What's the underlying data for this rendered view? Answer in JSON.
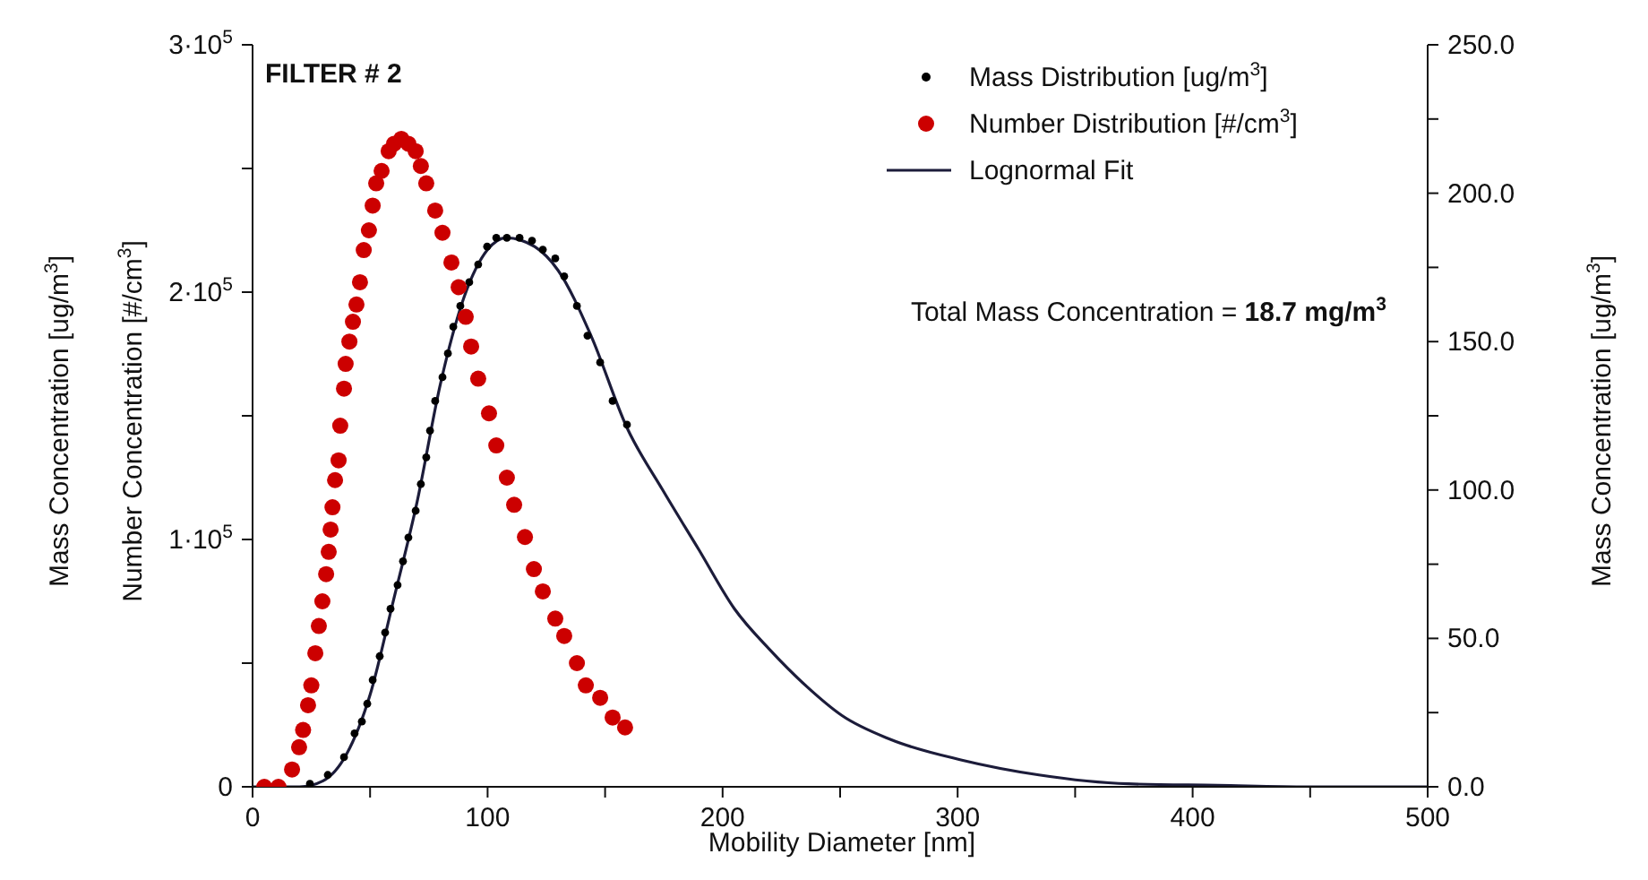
{
  "chart_data": {
    "type": "scatter",
    "xlabel": "Mobility Diameter [nm]",
    "ylabel": "Number Concentration [#/cm$^{3}$]",
    "y2label": "Mass Concentration [ug/m$^{3}$]",
    "annotations": [
      "FILTER # 2",
      "Total Mass Concentration = 18.7 mg/m$^{3}$",
      "Mass Concentration [ug/m$^{3}$]"
    ],
    "xlim": [
      0,
      500
    ],
    "xticks": [
      0,
      {
        "value": 50,
        "label": null
      },
      100,
      {
        "value": 150,
        "label": null
      },
      200,
      {
        "value": 250,
        "label": null
      },
      300,
      {
        "value": 350,
        "label": null
      },
      400,
      {
        "value": 450,
        "label": null
      },
      500
    ],
    "ylim": [
      0,
      300000
    ],
    "yticks": [
      0,
      {
        "value": 50000,
        "label": null
      },
      {
        "value": 100000,
        "label": "1·10$^{5}$"
      },
      {
        "value": 150000,
        "label": null
      },
      {
        "value": 200000,
        "label": "2·10$^{5}$"
      },
      {
        "value": 250000,
        "label": null
      },
      {
        "value": 300000,
        "label": "3·10$^{5}$"
      }
    ],
    "y2lim": [
      0,
      250
    ],
    "y2ticks": [
      {
        "value": 0,
        "label": "0.0"
      },
      {
        "value": 25,
        "label": null
      },
      {
        "value": 50,
        "label": "50.0"
      },
      {
        "value": 75,
        "label": null
      },
      {
        "value": 100,
        "label": "100.0"
      },
      {
        "value": 125,
        "label": null
      },
      {
        "value": 150,
        "label": "150.0"
      },
      {
        "value": 175,
        "label": null
      },
      {
        "value": 200,
        "label": "200.0"
      },
      {
        "value": 225,
        "label": null
      },
      {
        "value": 250,
        "label": "250.0"
      }
    ],
    "legend": "top right",
    "series": [
      {
        "name": "Mass Distribution [ug/m$^{3}$]",
        "axis": "y2",
        "marker": "circle",
        "color": "#000000",
        "x": [
          24.4,
          32,
          38.9,
          43.4,
          46.5,
          48.8,
          51.1,
          54.1,
          56.4,
          58.7,
          61.7,
          64,
          66.3,
          69.4,
          71.6,
          73.9,
          75.5,
          77.7,
          80.8,
          83.1,
          85.4,
          88.4,
          92.2,
          96,
          99.8,
          103.7,
          108.2,
          113.6,
          118.9,
          123.5,
          128.8,
          132.6,
          138,
          142.5,
          147.9,
          153.2,
          159.3
        ],
        "values": [
          1,
          4,
          10,
          18,
          22,
          28,
          36,
          44,
          52,
          60,
          68,
          76,
          84,
          93,
          102,
          111,
          120,
          130,
          138,
          146,
          155,
          162,
          170,
          176,
          182,
          185,
          185,
          185,
          184,
          181,
          178,
          172,
          162,
          152,
          143,
          130,
          122
        ]
      },
      {
        "name": "Number Distribution [#/cm$^{3}$]",
        "marker": "circle",
        "color": "#cc0000",
        "x": [
          5,
          11,
          16.8,
          19.8,
          21.5,
          23.6,
          25,
          26.7,
          28.2,
          29.7,
          31.3,
          32.4,
          33.2,
          34,
          35.1,
          36.6,
          37.3,
          38.9,
          39.6,
          41.2,
          42.7,
          44.2,
          45.7,
          47.3,
          49.5,
          51.1,
          52.6,
          54.9,
          57.9,
          60.2,
          63.3,
          66.3,
          69.4,
          71.6,
          73.9,
          77.7,
          80.8,
          84.6,
          87.7,
          90.7,
          93,
          96,
          100.6,
          103.7,
          108.2,
          111.3,
          115.9,
          119.7,
          123.5,
          128.8,
          132.6,
          138,
          141.8,
          147.9,
          153.2,
          158.5
        ],
        "values": [
          0,
          0,
          7000,
          16000,
          23000,
          33000,
          41000,
          54000,
          65000,
          75000,
          86000,
          95000,
          104000,
          113000,
          124000,
          132000,
          146000,
          161000,
          171000,
          180000,
          188000,
          195000,
          204000,
          217000,
          225000,
          235000,
          244000,
          249000,
          257000,
          260000,
          262000,
          260000,
          257000,
          251000,
          244000,
          233000,
          224000,
          212000,
          202000,
          190000,
          178000,
          165000,
          151000,
          138000,
          125000,
          114000,
          101000,
          88000,
          79000,
          68000,
          61000,
          50000,
          41000,
          36000,
          28000,
          24000
        ]
      },
      {
        "name": "Lognormal Fit",
        "type": "line",
        "axis": "y2",
        "marker": "none",
        "line_style": "solid",
        "color": "#1c1c3a",
        "x": [
          0,
          20,
          30,
          40,
          50,
          60,
          70,
          80,
          90,
          100,
          108,
          120,
          130,
          144,
          159.3,
          174.5,
          189.8,
          205,
          220.3,
          235.5,
          250.8,
          271.3,
          301.8,
          334.6,
          372.7,
          410.8,
          448.9,
          500
        ],
        "values": [
          0,
          0,
          2,
          11,
          31,
          63,
          96,
          136,
          165,
          181,
          185,
          182,
          174,
          152,
          121,
          100,
          80,
          60,
          46,
          34,
          24,
          16,
          9,
          4,
          1,
          0.5,
          0,
          0
        ]
      }
    ]
  }
}
